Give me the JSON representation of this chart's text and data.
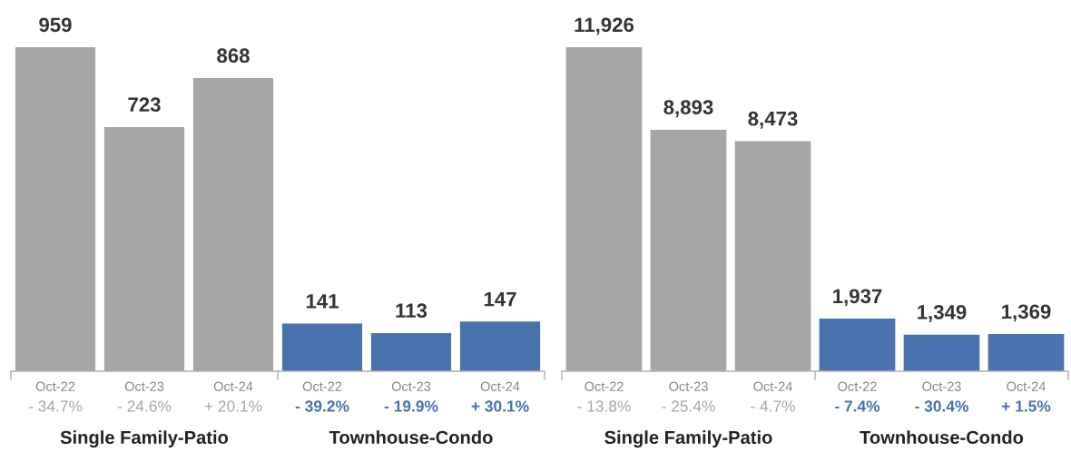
{
  "chart_data": [
    {
      "type": "bar",
      "categories": [
        "Single Family-Patio",
        "Townhouse-Condo"
      ],
      "series": [
        {
          "name": "Oct-22",
          "colors": [
            "#a6a6a6",
            "#4a72ad"
          ],
          "values": [
            959,
            141
          ]
        },
        {
          "name": "Oct-23",
          "colors": [
            "#a6a6a6",
            "#4a72ad"
          ],
          "values": [
            723,
            113
          ]
        },
        {
          "name": "Oct-24",
          "colors": [
            "#a6a6a6",
            "#4a72ad"
          ],
          "values": [
            868,
            147
          ]
        }
      ],
      "data_labels": true,
      "annotations": [
        "- 34.7%",
        "- 24.6%",
        "+ 20.1%",
        "- 39.2%",
        "- 19.9%",
        "+ 30.1%"
      ]
    },
    {
      "type": "bar",
      "categories": [
        "Single Family-Patio",
        "Townhouse-Condo"
      ],
      "series": [
        {
          "name": "Oct-22",
          "colors": [
            "#a6a6a6",
            "#4a72ad"
          ],
          "values": [
            11926,
            1937
          ],
          "value_labels": [
            "11,926",
            "1,937"
          ]
        },
        {
          "name": "Oct-23",
          "colors": [
            "#a6a6a6",
            "#4a72ad"
          ],
          "values": [
            8893,
            1349
          ],
          "value_labels": [
            "8,893",
            "1,349"
          ]
        },
        {
          "name": "Oct-24",
          "colors": [
            "#a6a6a6",
            "#4a72ad"
          ],
          "values": [
            8473,
            1369
          ],
          "value_labels": [
            "8,473",
            "1,369"
          ]
        }
      ],
      "annotations": [
        "- 13.8%",
        "- 25.4%",
        "- 4.7%",
        "- 7.4%",
        "- 30.4%",
        "+ 1.5%"
      ]
    }
  ]
}
